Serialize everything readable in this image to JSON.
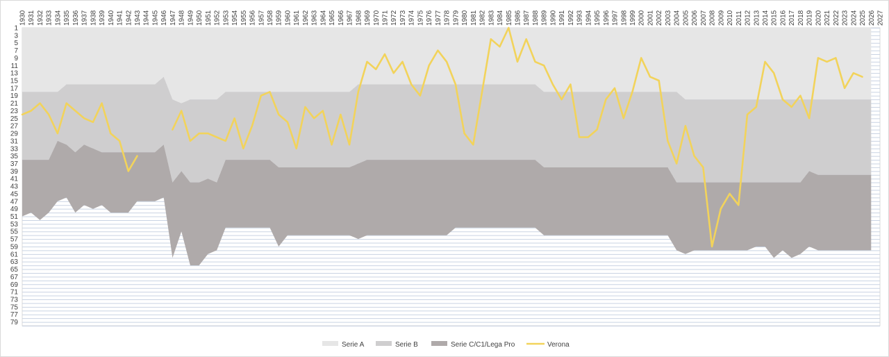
{
  "chart_data": {
    "type": "area",
    "title": "",
    "xlabel": "",
    "ylabel": "",
    "x_axis_position": "top",
    "y_axis_inverted": true,
    "ylim": [
      1,
      80
    ],
    "xlim": [
      1930,
      2027
    ],
    "y_tick_labels": [
      "1",
      "3",
      "5",
      "7",
      "9",
      "11",
      "13",
      "15",
      "17",
      "19",
      "21",
      "23",
      "25",
      "27",
      "29",
      "31",
      "33",
      "35",
      "37",
      "39",
      "41",
      "43",
      "45",
      "47",
      "49",
      "51",
      "53",
      "55",
      "57",
      "59",
      "61",
      "63",
      "65",
      "67",
      "69",
      "71",
      "73",
      "75",
      "77",
      "79"
    ],
    "x_tick_labels": [
      "1930",
      "1931",
      "1932",
      "1933",
      "1934",
      "1935",
      "1936",
      "1937",
      "1938",
      "1939",
      "1940",
      "1941",
      "1942",
      "1943",
      "1944",
      "1945",
      "1946",
      "1947",
      "1948",
      "1949",
      "1950",
      "1951",
      "1952",
      "1953",
      "1954",
      "1955",
      "1956",
      "1957",
      "1958",
      "1959",
      "1960",
      "1961",
      "1962",
      "1963",
      "1964",
      "1965",
      "1966",
      "1967",
      "1968",
      "1969",
      "1970",
      "1971",
      "1972",
      "1973",
      "1974",
      "1975",
      "1976",
      "1977",
      "1978",
      "1979",
      "1980",
      "1981",
      "1982",
      "1983",
      "1984",
      "1985",
      "1986",
      "1987",
      "1988",
      "1989",
      "1990",
      "1991",
      "1992",
      "1993",
      "1994",
      "1995",
      "1996",
      "1997",
      "1998",
      "1999",
      "2000",
      "2001",
      "2002",
      "2003",
      "2004",
      "2005",
      "2006",
      "2007",
      "2008",
      "2009",
      "2010",
      "2011",
      "2012",
      "2013",
      "2014",
      "2015",
      "2016",
      "2017",
      "2018",
      "2019",
      "2020",
      "2021",
      "2022",
      "2023",
      "2024",
      "2025",
      "2026",
      "2027"
    ],
    "grid": true,
    "legend_position": "bottom",
    "colors": {
      "serie_a": "#e6e6e6",
      "serie_b": "#cfcecf",
      "serie_c": "#afaaaa",
      "verona": "#f2d35b",
      "grid": "#c9d3e3",
      "axis_text": "#404040"
    },
    "bands": {
      "x": [
        1930,
        1931,
        1932,
        1933,
        1934,
        1935,
        1936,
        1937,
        1938,
        1939,
        1940,
        1941,
        1942,
        1943,
        1944,
        1945,
        1946,
        1947,
        1948,
        1949,
        1950,
        1951,
        1952,
        1953,
        1954,
        1955,
        1956,
        1957,
        1958,
        1959,
        1960,
        1961,
        1962,
        1963,
        1964,
        1965,
        1966,
        1967,
        1968,
        1969,
        1970,
        1971,
        1972,
        1973,
        1974,
        1975,
        1976,
        1977,
        1978,
        1979,
        1980,
        1981,
        1982,
        1983,
        1984,
        1985,
        1986,
        1987,
        1988,
        1989,
        1990,
        1991,
        1992,
        1993,
        1994,
        1995,
        1996,
        1997,
        1998,
        1999,
        2000,
        2001,
        2002,
        2003,
        2004,
        2005,
        2006,
        2007,
        2008,
        2009,
        2010,
        2011,
        2012,
        2013,
        2014,
        2015,
        2016,
        2017,
        2018,
        2019,
        2020,
        2021,
        2022,
        2023,
        2024,
        2025,
        2026
      ],
      "serie_a_bottom": [
        18,
        18,
        18,
        18,
        18,
        16,
        16,
        16,
        16,
        16,
        16,
        16,
        16,
        16,
        16,
        16,
        14,
        20,
        21,
        20,
        20,
        20,
        20,
        18,
        18,
        18,
        18,
        18,
        18,
        18,
        18,
        18,
        18,
        18,
        18,
        18,
        18,
        18,
        16,
        16,
        16,
        16,
        16,
        16,
        16,
        16,
        16,
        16,
        16,
        16,
        16,
        16,
        16,
        16,
        16,
        16,
        16,
        16,
        16,
        18,
        18,
        18,
        18,
        18,
        18,
        18,
        18,
        18,
        18,
        18,
        18,
        18,
        18,
        18,
        18,
        20,
        20,
        20,
        20,
        20,
        20,
        20,
        20,
        20,
        20,
        20,
        20,
        20,
        20,
        20,
        20,
        20,
        20,
        20,
        20,
        20,
        20
      ],
      "serie_b_bottom": [
        36,
        36,
        36,
        36,
        31,
        32,
        34,
        32,
        33,
        34,
        34,
        34,
        34,
        34,
        34,
        34,
        32,
        42,
        39,
        42,
        42,
        41,
        42,
        36,
        36,
        36,
        36,
        36,
        36,
        38,
        38,
        38,
        38,
        38,
        38,
        38,
        38,
        38,
        37,
        36,
        36,
        36,
        36,
        36,
        36,
        36,
        36,
        36,
        36,
        36,
        36,
        36,
        36,
        36,
        36,
        36,
        36,
        36,
        36,
        38,
        38,
        38,
        38,
        38,
        38,
        38,
        38,
        38,
        38,
        38,
        38,
        38,
        38,
        38,
        42,
        42,
        42,
        42,
        42,
        42,
        42,
        42,
        42,
        42,
        42,
        42,
        42,
        42,
        42,
        39,
        40,
        40,
        40,
        40,
        40,
        40,
        40
      ],
      "serie_c_bottom": [
        51,
        50,
        52,
        50,
        47,
        46,
        50,
        48,
        49,
        48,
        50,
        50,
        50,
        47,
        47,
        47,
        46,
        62,
        55,
        64,
        64,
        61,
        60,
        54,
        54,
        54,
        54,
        54,
        54,
        59,
        56,
        56,
        56,
        56,
        56,
        56,
        56,
        56,
        57,
        56,
        56,
        56,
        56,
        56,
        56,
        56,
        56,
        56,
        56,
        54,
        54,
        54,
        54,
        54,
        54,
        54,
        54,
        54,
        54,
        56,
        56,
        56,
        56,
        56,
        56,
        56,
        56,
        56,
        56,
        56,
        56,
        56,
        56,
        56,
        60,
        61,
        60,
        60,
        60,
        60,
        60,
        60,
        60,
        59,
        59,
        62,
        60,
        62,
        61,
        59,
        60,
        60,
        60,
        60,
        60,
        60,
        60
      ]
    },
    "series": [
      {
        "name": "Verona",
        "segments": [
          {
            "x": [
              1930,
              1931,
              1932,
              1933,
              1934,
              1935,
              1936,
              1937,
              1938,
              1939,
              1940,
              1941,
              1942,
              1943
            ],
            "y": [
              24,
              23,
              21,
              24,
              29,
              21,
              23,
              25,
              26,
              21,
              29,
              31,
              39,
              35
            ]
          },
          {
            "x": [
              1947,
              1948,
              1949,
              1950,
              1951,
              1952,
              1953,
              1954,
              1955,
              1956,
              1957,
              1958,
              1959,
              1960,
              1961,
              1962,
              1963,
              1964,
              1965,
              1966,
              1967,
              1968,
              1969,
              1970,
              1971,
              1972,
              1973,
              1974,
              1975,
              1976,
              1977,
              1978,
              1979,
              1980,
              1981,
              1982,
              1983,
              1984,
              1985,
              1986,
              1987,
              1988,
              1989,
              1990,
              1991,
              1992,
              1993,
              1994,
              1995,
              1996,
              1997,
              1998,
              1999,
              2000,
              2001,
              2002,
              2003,
              2004,
              2005,
              2006,
              2007,
              2008,
              2009,
              2010,
              2011,
              2012,
              2013,
              2014,
              2015,
              2016,
              2017,
              2018,
              2019,
              2020,
              2021,
              2022,
              2023,
              2024,
              2025
            ],
            "y": [
              28,
              23,
              31,
              29,
              29,
              30,
              31,
              25,
              33,
              27,
              19,
              18,
              24,
              26,
              33,
              22,
              25,
              23,
              32,
              24,
              32,
              18,
              10,
              12,
              8,
              13,
              10,
              16,
              19,
              11,
              7,
              10,
              16,
              29,
              32,
              18,
              4,
              6,
              1,
              10,
              4,
              10,
              11,
              16,
              20,
              16,
              30,
              30,
              28,
              20,
              17,
              25,
              18,
              9,
              14,
              15,
              31,
              37,
              27,
              35,
              38,
              59,
              49,
              45,
              48,
              24,
              22,
              10,
              13,
              20,
              22,
              19,
              25,
              9,
              10,
              9,
              17,
              13,
              14
            ]
          }
        ]
      }
    ],
    "legend": [
      {
        "key": "serie_a",
        "label": "Serie A",
        "kind": "area"
      },
      {
        "key": "serie_b",
        "label": "Serie B",
        "kind": "area"
      },
      {
        "key": "serie_c",
        "label": "Serie C/C1/Lega Pro",
        "kind": "area"
      },
      {
        "key": "verona",
        "label": "Verona",
        "kind": "line"
      }
    ]
  }
}
